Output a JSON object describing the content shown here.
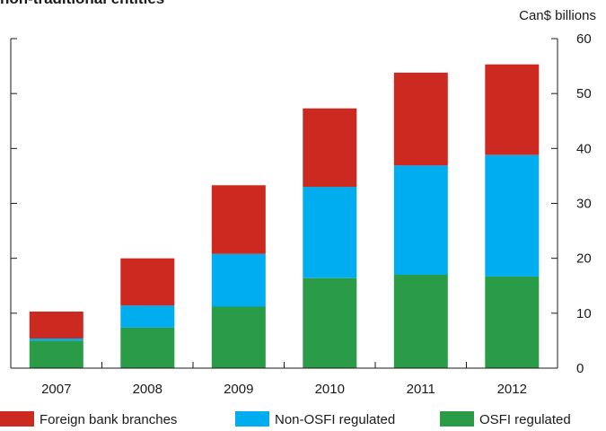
{
  "chart_data": {
    "type": "bar",
    "stacked": true,
    "title": "non-traditional entities",
    "unit_label": "Can$ billions",
    "categories": [
      "2007",
      "2008",
      "2009",
      "2010",
      "2011",
      "2012"
    ],
    "series": [
      {
        "name": "OSFI regulated",
        "color": "#2a9b47",
        "values": [
          5.0,
          7.4,
          11.2,
          16.4,
          17.0,
          16.7
        ]
      },
      {
        "name": "Non-OSFI regulated",
        "color": "#00aeef",
        "values": [
          0.4,
          4.0,
          9.6,
          16.6,
          19.9,
          22.1
        ]
      },
      {
        "name": "Foreign bank branches",
        "color": "#cc2a20",
        "values": [
          4.9,
          8.6,
          12.5,
          14.3,
          16.9,
          16.5
        ]
      }
    ],
    "legend_order": [
      "Foreign bank branches",
      "Non-OSFI regulated",
      "OSFI regulated"
    ],
    "ylim": [
      0,
      60
    ],
    "yticks": [
      0,
      10,
      20,
      30,
      40,
      50,
      60
    ],
    "grid": false,
    "legend_position": "bottom"
  }
}
